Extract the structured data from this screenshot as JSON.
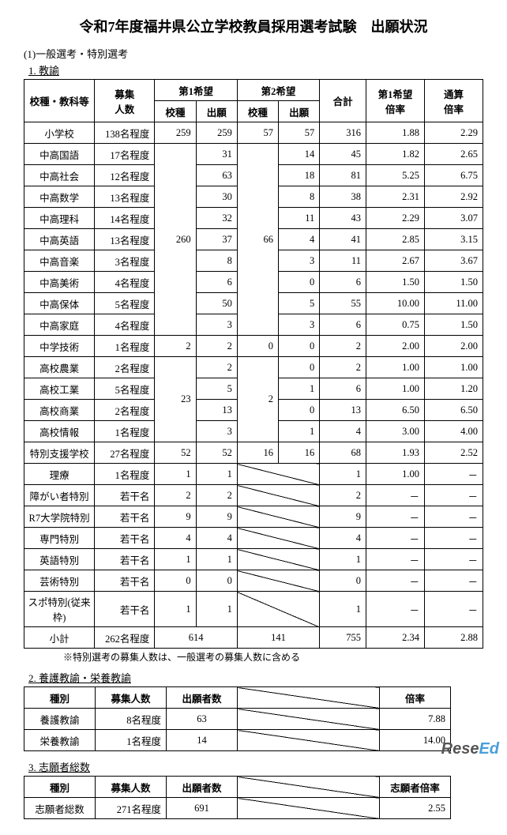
{
  "title": "令和7年度福井県公立学校教員採用選考試験　出願状況",
  "section1": "(1)一般選考・特別選考",
  "sub1": "1. 教諭",
  "headers": {
    "h1": "校種・教科等",
    "h2": "募集\n人数",
    "h3": "第1希望",
    "h4": "第2希望",
    "h5": "合計",
    "h6": "第1希望\n倍率",
    "h7": "通算\n倍率",
    "sub_school": "校種",
    "sub_app": "出願"
  },
  "rows": [
    {
      "subj": "小学校",
      "rec": "138名程度",
      "s1": "259",
      "a1": "259",
      "s2": "57",
      "a2": "57",
      "tot": "316",
      "r1": "1.88",
      "r2": "2.29"
    },
    {
      "subj": "中高国語",
      "rec": "17名程度",
      "s1": null,
      "a1": "31",
      "s2": null,
      "a2": "14",
      "tot": "45",
      "r1": "1.82",
      "r2": "2.65"
    },
    {
      "subj": "中高社会",
      "rec": "12名程度",
      "s1": null,
      "a1": "63",
      "s2": null,
      "a2": "18",
      "tot": "81",
      "r1": "5.25",
      "r2": "6.75"
    },
    {
      "subj": "中高数学",
      "rec": "13名程度",
      "s1": null,
      "a1": "30",
      "s2": null,
      "a2": "8",
      "tot": "38",
      "r1": "2.31",
      "r2": "2.92"
    },
    {
      "subj": "中高理科",
      "rec": "14名程度",
      "s1": null,
      "a1": "32",
      "s2": null,
      "a2": "11",
      "tot": "43",
      "r1": "2.29",
      "r2": "3.07"
    },
    {
      "subj": "中高英語",
      "rec": "13名程度",
      "s1": "260",
      "a1": "37",
      "s2": "66",
      "a2": "4",
      "tot": "41",
      "r1": "2.85",
      "r2": "3.15"
    },
    {
      "subj": "中高音楽",
      "rec": "3名程度",
      "s1": null,
      "a1": "8",
      "s2": null,
      "a2": "3",
      "tot": "11",
      "r1": "2.67",
      "r2": "3.67"
    },
    {
      "subj": "中高美術",
      "rec": "4名程度",
      "s1": null,
      "a1": "6",
      "s2": null,
      "a2": "0",
      "tot": "6",
      "r1": "1.50",
      "r2": "1.50"
    },
    {
      "subj": "中高保体",
      "rec": "5名程度",
      "s1": null,
      "a1": "50",
      "s2": null,
      "a2": "5",
      "tot": "55",
      "r1": "10.00",
      "r2": "11.00"
    },
    {
      "subj": "中高家庭",
      "rec": "4名程度",
      "s1": null,
      "a1": "3",
      "s2": null,
      "a2": "3",
      "tot": "6",
      "r1": "0.75",
      "r2": "1.50"
    },
    {
      "subj": "中学技術",
      "rec": "1名程度",
      "s1": "2",
      "a1": "2",
      "s2": "0",
      "a2": "0",
      "tot": "2",
      "r1": "2.00",
      "r2": "2.00"
    },
    {
      "subj": "高校農業",
      "rec": "2名程度",
      "s1": null,
      "a1": "2",
      "s2": null,
      "a2": "0",
      "tot": "2",
      "r1": "1.00",
      "r2": "1.00"
    },
    {
      "subj": "高校工業",
      "rec": "5名程度",
      "s1": "23",
      "a1": "5",
      "s2": "2",
      "a2": "1",
      "tot": "6",
      "r1": "1.00",
      "r2": "1.20"
    },
    {
      "subj": "高校商業",
      "rec": "2名程度",
      "s1": null,
      "a1": "13",
      "s2": null,
      "a2": "0",
      "tot": "13",
      "r1": "6.50",
      "r2": "6.50"
    },
    {
      "subj": "高校情報",
      "rec": "1名程度",
      "s1": null,
      "a1": "3",
      "s2": null,
      "a2": "1",
      "tot": "4",
      "r1": "3.00",
      "r2": "4.00"
    },
    {
      "subj": "特別支援学校",
      "rec": "27名程度",
      "s1": "52",
      "a1": "52",
      "s2": "16",
      "a2": "16",
      "tot": "68",
      "r1": "1.93",
      "r2": "2.52"
    },
    {
      "subj": "理療",
      "rec": "1名程度",
      "s1": "1",
      "a1": "1",
      "slash": true,
      "tot": "1",
      "r1": "1.00",
      "r2": "－"
    },
    {
      "subj": "障がい者特別",
      "rec": "若干名",
      "s1": "2",
      "a1": "2",
      "slash": true,
      "tot": "2",
      "r1": "－",
      "r2": "－"
    },
    {
      "subj": "R7大学院特別",
      "rec": "若干名",
      "s1": "9",
      "a1": "9",
      "slash": true,
      "tot": "9",
      "r1": "－",
      "r2": "－"
    },
    {
      "subj": "専門特別",
      "rec": "若干名",
      "s1": "4",
      "a1": "4",
      "slash": true,
      "tot": "4",
      "r1": "－",
      "r2": "－"
    },
    {
      "subj": "英語特別",
      "rec": "若干名",
      "s1": "1",
      "a1": "1",
      "slash": true,
      "tot": "1",
      "r1": "－",
      "r2": "－"
    },
    {
      "subj": "芸術特別",
      "rec": "若干名",
      "s1": "0",
      "a1": "0",
      "slash": true,
      "tot": "0",
      "r1": "－",
      "r2": "－"
    },
    {
      "subj": "スポ特別(従来枠)",
      "rec": "若干名",
      "s1": "1",
      "a1": "1",
      "slash": true,
      "tot": "1",
      "r1": "－",
      "r2": "－"
    }
  ],
  "subtotal": {
    "subj": "小計",
    "rec": "262名程度",
    "v1": "614",
    "v2": "141",
    "tot": "755",
    "r1": "2.34",
    "r2": "2.88"
  },
  "note": "※特別選考の募集人数は、一般選考の募集人数に含める",
  "sub2": "2. 養護教諭・栄養教諭",
  "t2headers": {
    "h1": "種別",
    "h2": "募集人数",
    "h3": "出願者数",
    "h5": "倍率"
  },
  "t2rows": [
    {
      "k": "養護教諭",
      "rec": "8名程度",
      "app": "63",
      "rate": "7.88"
    },
    {
      "k": "栄養教諭",
      "rec": "1名程度",
      "app": "14",
      "rate": "14.00"
    }
  ],
  "sub3": "3. 志願者総数",
  "t3headers": {
    "h1": "種別",
    "h2": "募集人数",
    "h3": "出願者数",
    "h5": "志願者倍率"
  },
  "t3rows": [
    {
      "k": "志願者総数",
      "rec": "271名程度",
      "app": "691",
      "rate": "2.55"
    }
  ],
  "logo": {
    "rese": "Rese",
    "ed": "Ed"
  }
}
